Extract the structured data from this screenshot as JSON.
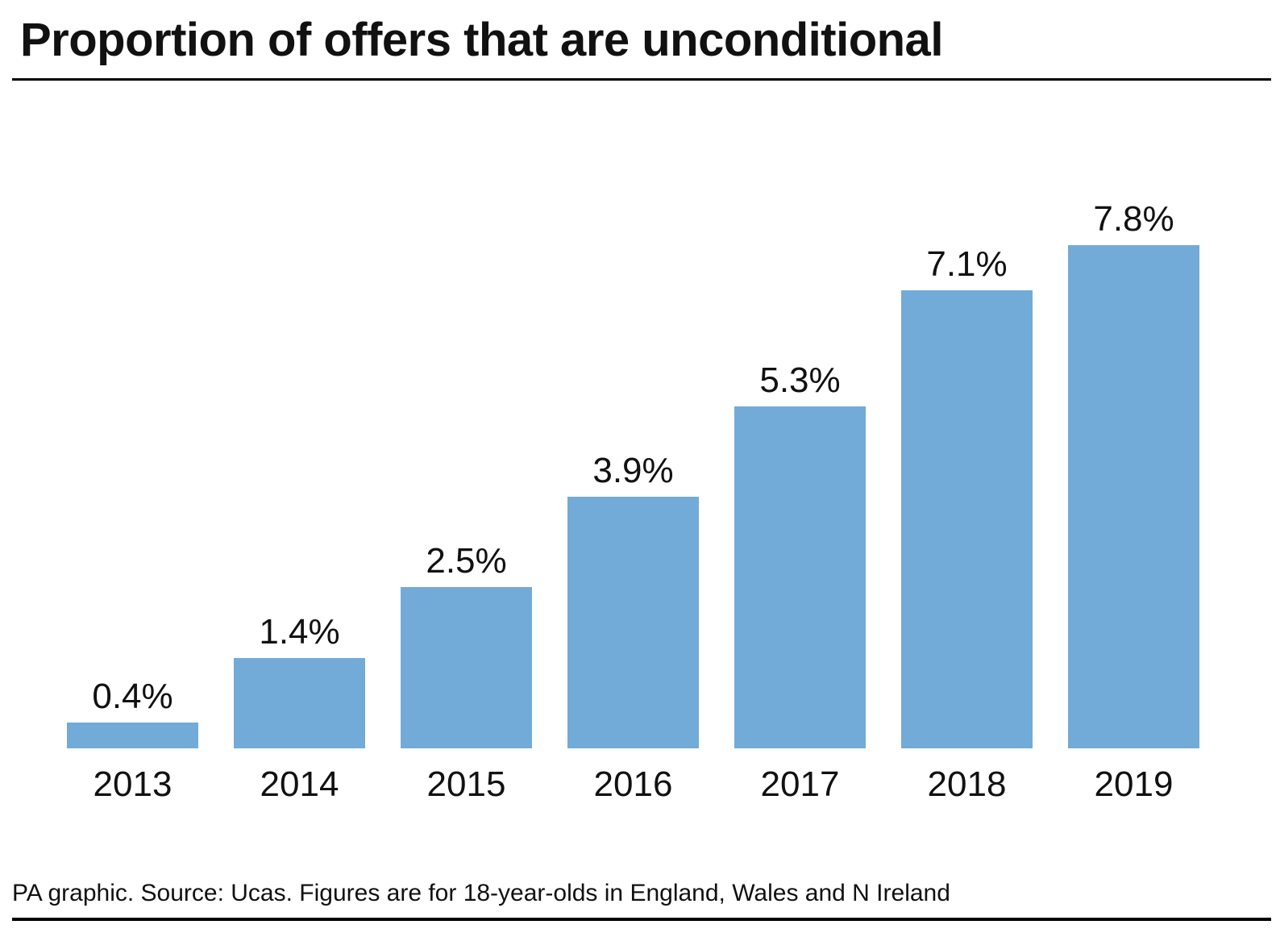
{
  "header": {
    "title": "Proportion of offers that are unconditional"
  },
  "footer": {
    "source": "PA graphic. Source: Ucas. Figures are for 18-year-olds in England, Wales and N Ireland"
  },
  "colors": {
    "bar": "#72abd7",
    "text": "#111111",
    "rule": "#000000"
  },
  "chart_data": {
    "type": "bar",
    "title": "Proportion of offers that are unconditional",
    "xlabel": "",
    "ylabel": "",
    "categories": [
      "2013",
      "2014",
      "2015",
      "2016",
      "2017",
      "2018",
      "2019"
    ],
    "values": [
      0.4,
      1.4,
      2.5,
      3.9,
      5.3,
      7.1,
      7.8
    ],
    "value_labels": [
      "0.4%",
      "1.4%",
      "2.5%",
      "3.9%",
      "5.3%",
      "7.1%",
      "7.8%"
    ],
    "ylim": [
      0,
      8
    ],
    "grid": false,
    "legend": "none"
  }
}
